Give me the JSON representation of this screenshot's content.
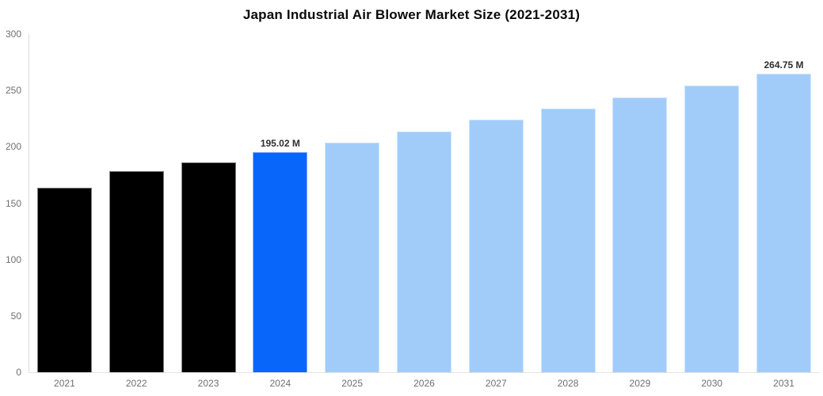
{
  "title": "Japan Industrial Air Blower Market Size (2021-2031)",
  "chart_data": {
    "type": "bar",
    "title": "Japan Industrial Air Blower Market Size (2021-2031)",
    "categories": [
      "2021",
      "2022",
      "2023",
      "2024",
      "2025",
      "2026",
      "2027",
      "2028",
      "2029",
      "2030",
      "2031"
    ],
    "values": [
      164,
      178.5,
      186.5,
      195.02,
      203.5,
      213.5,
      224,
      234,
      244,
      254,
      264.75
    ],
    "bar_value_labels": [
      "",
      "",
      "",
      "195.02 M",
      "",
      "",
      "",
      "",
      "",
      "",
      "264.75 M"
    ],
    "bar_colors": [
      "#000000",
      "#000000",
      "#000000",
      "#0866fb",
      "#a1ccfa",
      "#a1ccfa",
      "#a1ccfa",
      "#a1ccfa",
      "#a1ccfa",
      "#a1ccfa",
      "#a1ccfa"
    ],
    "xlabel": "",
    "ylabel": "",
    "ylim": [
      0,
      300
    ],
    "yticks": [
      0,
      50,
      100,
      150,
      200,
      250,
      300
    ],
    "grid": false,
    "legend": false,
    "colors": {
      "historical_bar": "#000000",
      "current_year_bar": "#0866fb",
      "forecast_bar": "#a1ccfa",
      "axis_line": "#dcdcdc",
      "tick_label": "#6f6f6f",
      "data_label": "#2f2f2f",
      "title": "#0a0a0a",
      "background": "#ffffff"
    }
  }
}
